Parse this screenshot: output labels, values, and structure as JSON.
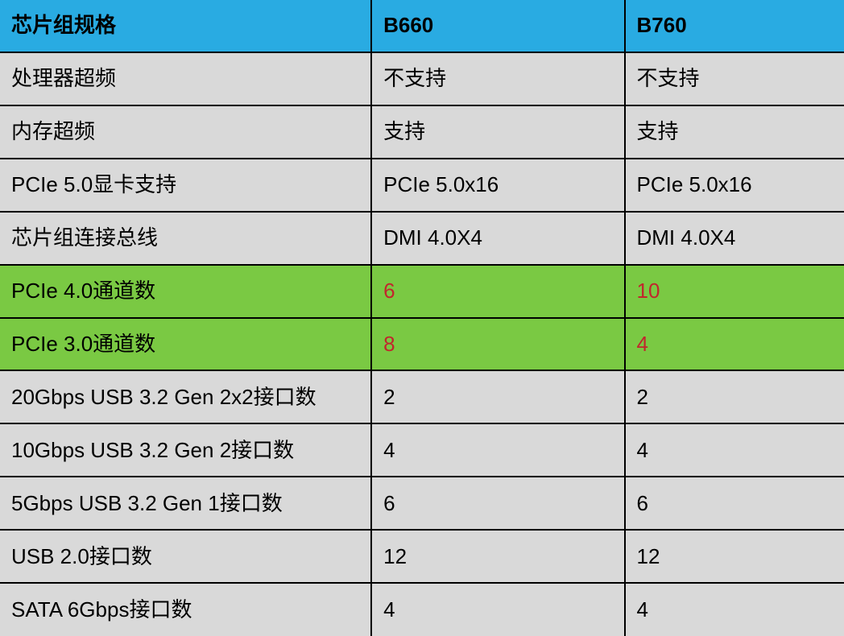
{
  "table": {
    "type": "table",
    "background_color": "#d9d9d9",
    "header_bg": "#29abe2",
    "highlight_bg": "#7ac943",
    "highlight_text": "#c1272d",
    "border_color": "#000000",
    "font_size": 26,
    "columns": [
      {
        "key": "spec",
        "label": "芯片组规格",
        "width_pct": 44
      },
      {
        "key": "b660",
        "label": "B660",
        "width_pct": 30
      },
      {
        "key": "b760",
        "label": "B760",
        "width_pct": 26
      }
    ],
    "rows": [
      {
        "spec": "处理器超频",
        "b660": "不支持",
        "b760": "不支持",
        "highlight": false
      },
      {
        "spec": "内存超频",
        "b660": "支持",
        "b760": "支持",
        "highlight": false
      },
      {
        "spec": "PCIe 5.0显卡支持",
        "b660": "PCIe 5.0x16",
        "b760": "PCIe 5.0x16",
        "highlight": false
      },
      {
        "spec": "芯片组连接总线",
        "b660": "DMI 4.0X4",
        "b760": "DMI 4.0X4",
        "highlight": false
      },
      {
        "spec": "PCIe 4.0通道数",
        "b660": "6",
        "b760": "10",
        "highlight": true
      },
      {
        "spec": "PCIe 3.0通道数",
        "b660": "8",
        "b760": "4",
        "highlight": true
      },
      {
        "spec": "20Gbps USB 3.2 Gen 2x2接口数",
        "b660": "2",
        "b760": "2",
        "highlight": false
      },
      {
        "spec": "10Gbps USB 3.2 Gen 2接口数",
        "b660": "4",
        "b760": "4",
        "highlight": false
      },
      {
        "spec": "5Gbps USB 3.2 Gen 1接口数",
        "b660": "6",
        "b760": "6",
        "highlight": false
      },
      {
        "spec": "USB 2.0接口数",
        "b660": "12",
        "b760": "12",
        "highlight": false
      },
      {
        "spec": "SATA 6Gbps接口数",
        "b660": "4",
        "b760": "4",
        "highlight": false
      }
    ]
  }
}
